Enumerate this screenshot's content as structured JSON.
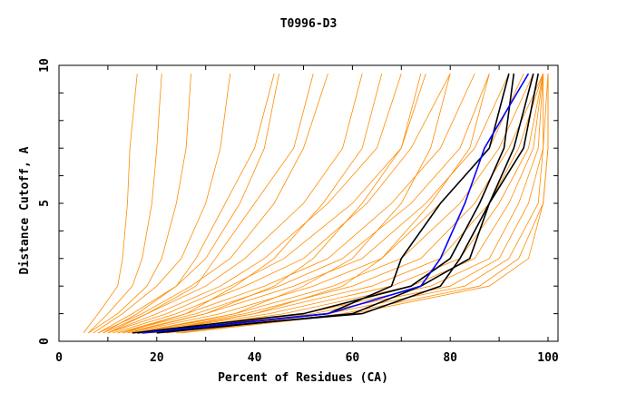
{
  "chart_data": {
    "type": "line",
    "title": "T0996-D3",
    "xlabel": "Percent of Residues (CA)",
    "ylabel": "Distance Cutoff, A",
    "xlim": [
      0,
      100
    ],
    "ylim": [
      0,
      10
    ],
    "xticks": [
      "0",
      "20",
      "40",
      "60",
      "80",
      "100"
    ],
    "yticks": [
      "0",
      "5",
      "10"
    ],
    "grid": false,
    "distances": [
      0.3,
      1,
      2,
      3,
      5,
      7,
      9.7
    ],
    "colors": {
      "others": "#ff8c00",
      "highlight": "#000000",
      "best": "#0000ff"
    },
    "series": [
      {
        "group": "others",
        "percent": [
          5,
          8,
          12,
          13,
          14,
          14.5,
          16
        ]
      },
      {
        "group": "others",
        "percent": [
          6,
          10,
          15,
          17,
          19,
          20,
          21
        ]
      },
      {
        "group": "others",
        "percent": [
          6,
          12,
          18,
          21,
          24,
          26,
          27
        ]
      },
      {
        "group": "others",
        "percent": [
          7,
          13,
          20,
          25,
          30,
          33,
          35
        ]
      },
      {
        "group": "others",
        "percent": [
          8,
          15,
          24,
          30,
          37,
          42,
          45
        ]
      },
      {
        "group": "others",
        "percent": [
          8,
          17,
          27,
          35,
          44,
          50,
          55
        ]
      },
      {
        "group": "others",
        "percent": [
          9,
          18,
          30,
          38,
          50,
          58,
          62
        ]
      },
      {
        "group": "others",
        "percent": [
          10,
          20,
          33,
          42,
          55,
          65,
          70
        ]
      },
      {
        "group": "others",
        "percent": [
          10,
          22,
          35,
          46,
          60,
          70,
          75
        ]
      },
      {
        "group": "others",
        "percent": [
          11,
          24,
          38,
          50,
          63,
          72,
          80
        ]
      },
      {
        "group": "others",
        "percent": [
          12,
          26,
          42,
          55,
          68,
          78,
          85
        ]
      },
      {
        "group": "others",
        "percent": [
          12,
          28,
          45,
          58,
          72,
          82,
          88
        ]
      },
      {
        "group": "others",
        "percent": [
          13,
          30,
          48,
          62,
          75,
          85,
          92
        ]
      },
      {
        "group": "others",
        "percent": [
          14,
          33,
          52,
          66,
          78,
          88,
          95
        ]
      },
      {
        "group": "others",
        "percent": [
          15,
          36,
          56,
          70,
          82,
          90,
          97
        ]
      },
      {
        "group": "others",
        "percent": [
          15,
          38,
          60,
          74,
          85,
          92,
          99
        ]
      },
      {
        "group": "others",
        "percent": [
          16,
          40,
          64,
          78,
          88,
          94,
          99
        ]
      },
      {
        "group": "others",
        "percent": [
          17,
          43,
          68,
          82,
          90,
          96,
          99
        ]
      },
      {
        "group": "others",
        "percent": [
          18,
          46,
          72,
          85,
          92,
          97,
          99
        ]
      },
      {
        "group": "others",
        "percent": [
          19,
          50,
          76,
          88,
          94,
          98,
          99
        ]
      },
      {
        "group": "others",
        "percent": [
          20,
          52,
          80,
          90,
          96,
          99,
          99
        ]
      },
      {
        "group": "others",
        "percent": [
          22,
          55,
          83,
          92,
          98,
          99,
          100
        ]
      },
      {
        "group": "others",
        "percent": [
          24,
          58,
          86,
          94,
          99,
          100,
          100
        ]
      },
      {
        "group": "others",
        "percent": [
          25,
          60,
          88,
          96,
          99,
          100,
          100
        ]
      },
      {
        "group": "others",
        "percent": [
          10,
          18,
          28,
          32,
          40,
          48,
          52
        ]
      },
      {
        "group": "others",
        "percent": [
          9,
          16,
          24,
          28,
          34,
          40,
          44
        ]
      },
      {
        "group": "others",
        "percent": [
          14,
          30,
          44,
          52,
          62,
          70,
          74
        ]
      },
      {
        "group": "others",
        "percent": [
          16,
          36,
          50,
          60,
          70,
          76,
          80
        ]
      },
      {
        "group": "others",
        "percent": [
          18,
          40,
          58,
          66,
          76,
          84,
          88
        ]
      },
      {
        "group": "others",
        "percent": [
          13,
          26,
          36,
          44,
          54,
          62,
          66
        ]
      },
      {
        "group": "highlight",
        "percent": [
          15,
          50,
          72,
          80,
          86,
          91,
          93
        ]
      },
      {
        "group": "highlight",
        "percent": [
          16,
          55,
          68,
          70,
          78,
          88,
          92
        ]
      },
      {
        "group": "highlight",
        "percent": [
          17,
          62,
          78,
          82,
          88,
          93,
          97
        ]
      },
      {
        "group": "highlight",
        "percent": [
          20,
          60,
          74,
          84,
          88,
          95,
          98
        ]
      },
      {
        "group": "best",
        "percent": [
          17,
          55,
          74,
          78,
          83,
          87,
          96
        ]
      }
    ]
  }
}
